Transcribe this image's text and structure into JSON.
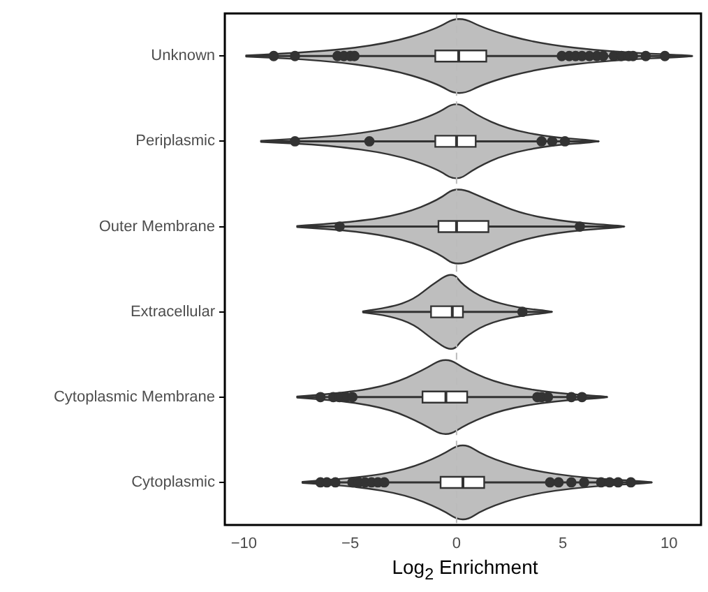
{
  "chart_data": {
    "type": "box",
    "orientation": "horizontal",
    "xlabel": "Log$_{2}$ Enrichment",
    "categories": [
      "Unknown",
      "Periplasmic",
      "Outer Membrane",
      "Extracellular",
      "Cytoplasmic Membrane",
      "Cytoplasmic"
    ],
    "color": "#ffffff",
    "boxes": [
      {
        "low": -9.9,
        "q1": -1.0,
        "median": 0.1,
        "q3": 1.4,
        "high": 11.1,
        "outliers": [
          -8.6,
          -7.6,
          -5.6,
          -5.3,
          -5.0,
          -4.8,
          4.95,
          5.3,
          5.6,
          5.9,
          6.25,
          6.6,
          6.9,
          7.4,
          7.75,
          8.1,
          8.3,
          8.9,
          9.8
        ]
      },
      {
        "low": -9.2,
        "q1": -1.0,
        "median": 0.0,
        "q3": 0.9,
        "high": 6.7,
        "outliers": [
          -7.6,
          -4.1,
          4.0,
          4.5,
          5.1
        ]
      },
      {
        "low": -7.5,
        "q1": -0.85,
        "median": 0.0,
        "q3": 1.5,
        "high": 7.9,
        "outliers": [
          -5.5,
          5.8
        ]
      },
      {
        "low": -4.4,
        "q1": -1.2,
        "median": -0.2,
        "q3": 0.3,
        "high": 4.5,
        "outliers": [
          3.1
        ]
      },
      {
        "low": -7.5,
        "q1": -1.6,
        "median": -0.5,
        "q3": 0.5,
        "high": 7.1,
        "outliers": [
          -6.4,
          -5.8,
          -5.5,
          -5.2,
          -4.9,
          3.8,
          4.0,
          4.3,
          5.4,
          5.9
        ]
      },
      {
        "low": -7.25,
        "q1": -0.75,
        "median": 0.3,
        "q3": 1.3,
        "high": 9.2,
        "outliers": [
          -6.4,
          -6.1,
          -5.7,
          -4.9,
          -4.6,
          -4.3,
          -4.0,
          -3.7,
          -3.4,
          4.4,
          4.8,
          5.4,
          6.0,
          6.8,
          7.2,
          7.6,
          8.2
        ]
      }
    ],
    "xlim": [
      -10.9,
      11.5
    ],
    "xticks": [
      {
        "value": -10,
        "label": "−10"
      },
      {
        "value": -5,
        "label": "−5"
      },
      0,
      5,
      10
    ],
    "ref_lines": [
      {
        "axis": "x",
        "value": 0,
        "color": "#bbbbbb",
        "line_style": "dashed"
      }
    ],
    "marker": "circle",
    "grid": false,
    "legend": false
  }
}
